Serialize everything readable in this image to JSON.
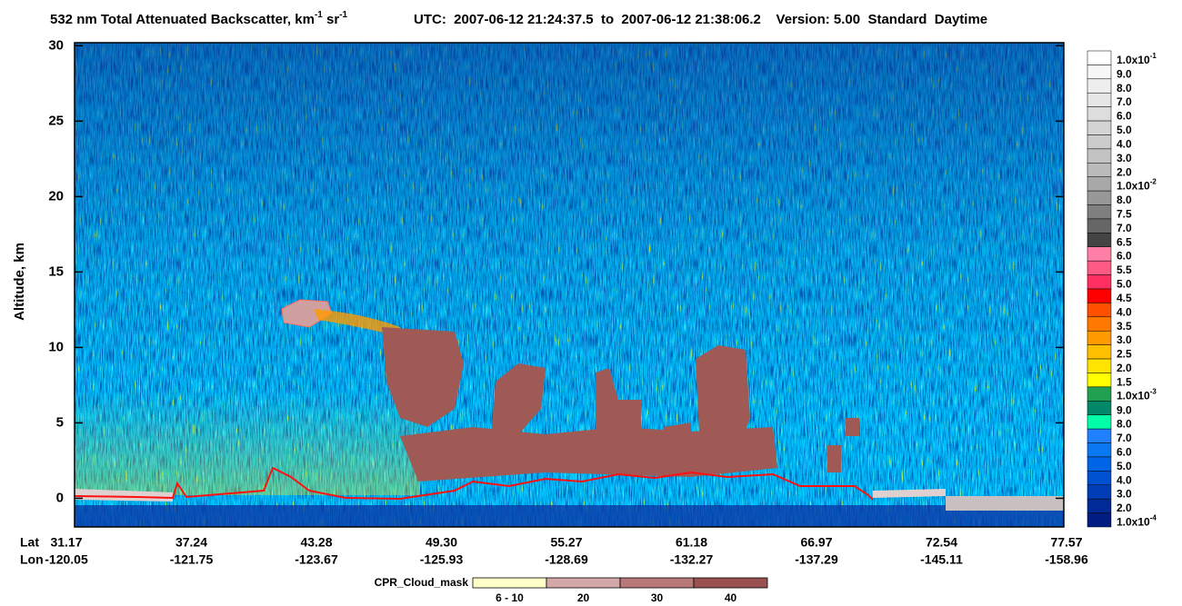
{
  "chart_data": {
    "type": "curtain",
    "title_parts": [
      "532 nm Total Attenuated Backscatter, km",
      "-1",
      " sr",
      "-1"
    ],
    "subtitle": "UTC:  2007-06-12 21:24:37.5  to  2007-06-12 21:38:06.2    Version: 5.00  Standard  Daytime",
    "ylabel": "Altitude, km",
    "ylim": [
      -1.9,
      30.2
    ],
    "yticks": [
      0,
      5,
      10,
      15,
      20,
      25,
      30
    ],
    "x_rows": [
      "Lat",
      "Lon"
    ],
    "lat": [
      "31.17",
      "37.24",
      "43.28",
      "49.30",
      "55.27",
      "61.18",
      "66.97",
      "72.54",
      "77.57"
    ],
    "lon": [
      "-120.05",
      "-121.75",
      "-123.67",
      "-125.93",
      "-128.69",
      "-132.27",
      "-137.29",
      "-145.11",
      "-158.96"
    ],
    "colorbar": {
      "labels": [
        {
          "base": "1.0x10",
          "exp": "-1"
        },
        "9.0",
        "8.0",
        "7.0",
        "6.0",
        "5.0",
        "4.0",
        "3.0",
        "2.0",
        {
          "base": "1.0x10",
          "exp": "-2"
        },
        "8.0",
        "7.5",
        "7.0",
        "6.5",
        "6.0",
        "5.5",
        "5.0",
        "4.5",
        "4.0",
        "3.5",
        "3.0",
        "2.5",
        "2.0",
        "1.5",
        {
          "base": "1.0x10",
          "exp": "-3"
        },
        "9.0",
        "8.0",
        "7.0",
        "6.0",
        "5.0",
        "4.0",
        "3.0",
        "2.0",
        {
          "base": "1.0x10",
          "exp": "-4"
        }
      ],
      "colors": [
        "#ffffff",
        "#f7f7f7",
        "#eeeeee",
        "#e6e6e6",
        "#dddddd",
        "#d4d4d4",
        "#cccccc",
        "#c3c3c3",
        "#bababa",
        "#a8a8a8",
        "#989898",
        "#7f7f7f",
        "#666666",
        "#444444",
        "#ff7fa6",
        "#ff5a86",
        "#ff3060",
        "#ff0000",
        "#ff5000",
        "#ff7800",
        "#ff9a00",
        "#ffc000",
        "#ffe400",
        "#ffff00",
        "#20a050",
        "#008868",
        "#00ffa8",
        "#2080ff",
        "#0a78f0",
        "#0064e6",
        "#0050d2",
        "#003cb4",
        "#002a96",
        "#001e82"
      ]
    },
    "cloud_mask": {
      "title": "CPR_Cloud_mask",
      "labels": [
        "6 - 10",
        "20",
        "30",
        "40"
      ],
      "colors": [
        "#ffffc8",
        "#d4a8a8",
        "#b87878",
        "#985050"
      ]
    }
  }
}
